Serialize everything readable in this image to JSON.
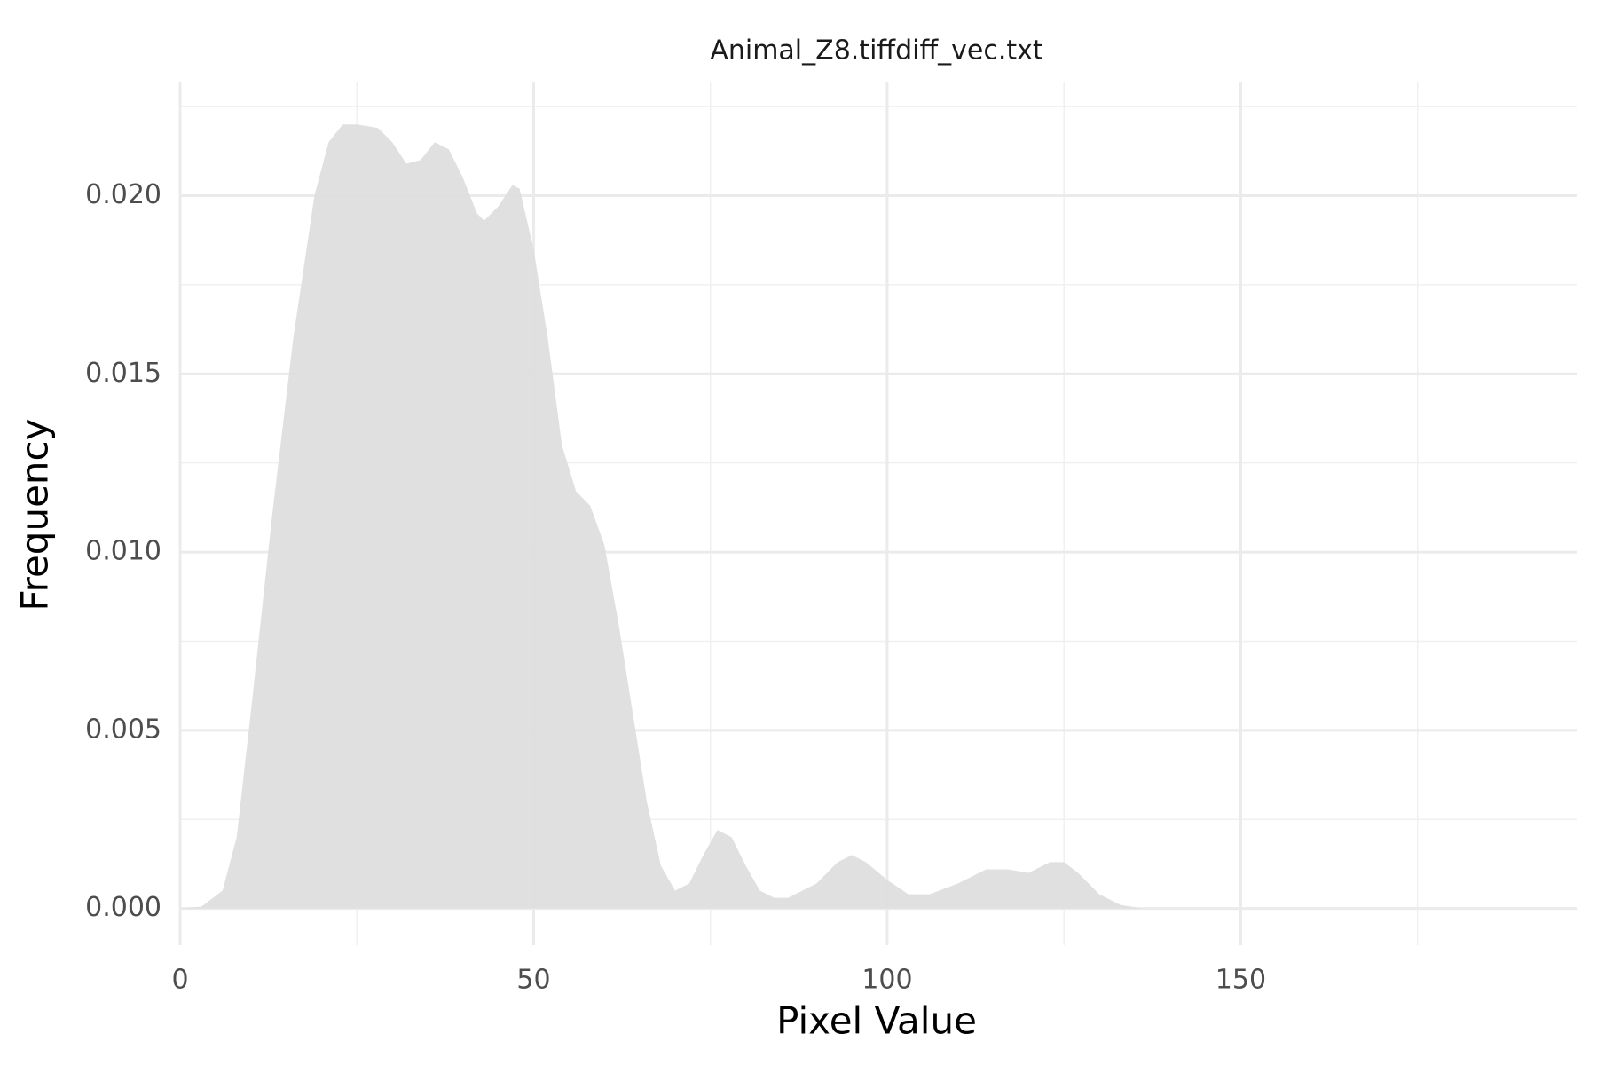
{
  "chart_data": {
    "type": "area",
    "title": "Animal_Z8.tiffdiff_vec.txt",
    "x_label": "Pixel Value",
    "y_label": "Frequency",
    "x": [
      0,
      3,
      6,
      8,
      10,
      13,
      16,
      19,
      21,
      23,
      25,
      28,
      30,
      32,
      34,
      36,
      38,
      40,
      42,
      43,
      45,
      47,
      48,
      50,
      52,
      54,
      56,
      58,
      60,
      62,
      64,
      66,
      68,
      70,
      72,
      74,
      76,
      78,
      80,
      82,
      84,
      86,
      90,
      93,
      95,
      97,
      100,
      103,
      106,
      110,
      114,
      117,
      120,
      123,
      125,
      127,
      130,
      133,
      136,
      197
    ],
    "y": [
      0,
      5e-05,
      0.0005,
      0.002,
      0.0055,
      0.011,
      0.016,
      0.02,
      0.0215,
      0.022,
      0.022,
      0.0219,
      0.0215,
      0.0209,
      0.021,
      0.0215,
      0.0213,
      0.0205,
      0.0195,
      0.0193,
      0.0197,
      0.0203,
      0.0202,
      0.0185,
      0.016,
      0.013,
      0.0117,
      0.0113,
      0.0102,
      0.008,
      0.0055,
      0.003,
      0.0012,
      0.0005,
      0.0007,
      0.0015,
      0.0022,
      0.002,
      0.0012,
      0.0005,
      0.0003,
      0.0003,
      0.0007,
      0.0013,
      0.0015,
      0.0013,
      0.0008,
      0.0004,
      0.0004,
      0.0007,
      0.0011,
      0.0011,
      0.001,
      0.0013,
      0.0013,
      0.001,
      0.0004,
      0.0001,
      0,
      0
    ],
    "color": "#dedede",
    "xlim": [
      0,
      197.5
    ],
    "ylim": [
      -0.00103,
      0.0232
    ],
    "xticks": [
      0,
      50,
      100,
      150
    ],
    "yticks": [
      {
        "value": 0,
        "label": "0.000"
      },
      {
        "value": 0.005,
        "label": "0.005"
      },
      {
        "value": 0.01,
        "label": "0.010"
      },
      {
        "value": 0.015,
        "label": "0.015"
      },
      {
        "value": 0.02,
        "label": "0.020"
      }
    ],
    "x_minor_ticks": [
      25,
      75,
      125,
      175
    ],
    "y_minor_ticks": [
      0.0025,
      0.0075,
      0.0125,
      0.0175,
      0.0225
    ],
    "grid": true
  }
}
